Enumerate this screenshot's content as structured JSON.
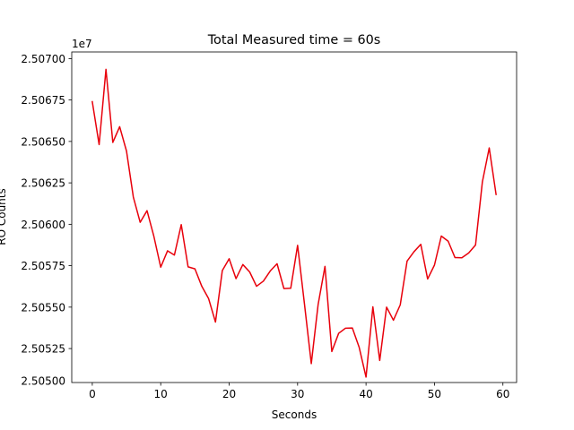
{
  "chart_data": {
    "type": "line",
    "title": "Total Measured time = 60s",
    "xlabel": "Seconds",
    "ylabel": "RO Counts",
    "y_offset_label": "1e7",
    "xlim": [
      -3,
      62
    ],
    "ylim": [
      2.505045,
      2.50704
    ],
    "x_ticks": [
      0,
      10,
      20,
      30,
      40,
      50,
      60
    ],
    "x_tick_labels": [
      "0",
      "10",
      "20",
      "30",
      "40",
      "50",
      "60"
    ],
    "y_ticks": [
      2.50525,
      2.5055,
      2.50575,
      2.506,
      2.50625,
      2.5065,
      2.50675,
      2.507
    ],
    "y_tick_labels": [
      "2.50525",
      "2.50550",
      "2.50575",
      "2.50600",
      "2.50625",
      "2.50650",
      "2.50675",
      "2.50700"
    ],
    "y_extra_ticks": [
      2.505
    ],
    "y_extra_tick_labels": [
      "2.50500"
    ],
    "grid": false,
    "series": [
      {
        "color": "#e8000b",
        "x": [
          0,
          1,
          2,
          3,
          4,
          5,
          6,
          7,
          8,
          9,
          10,
          11,
          12,
          13,
          14,
          15,
          16,
          17,
          18,
          19,
          20,
          21,
          22,
          23,
          24,
          25,
          26,
          27,
          28,
          29,
          30,
          31,
          32,
          33,
          34,
          35,
          36,
          37,
          38,
          39,
          40,
          41,
          42,
          43,
          44,
          45,
          46,
          47,
          48,
          49,
          50,
          51,
          52,
          53,
          54,
          55,
          56,
          57,
          58,
          59
        ],
        "y": [
          2.50674,
          2.506481,
          2.506935,
          2.506494,
          2.506589,
          2.506442,
          2.506164,
          2.506012,
          2.506082,
          2.505927,
          2.505741,
          2.50584,
          2.505814,
          2.505998,
          2.505743,
          2.505731,
          2.505626,
          2.505551,
          2.50541,
          2.505721,
          2.505792,
          2.505672,
          2.505757,
          2.505712,
          2.505626,
          2.505657,
          2.505718,
          2.505762,
          2.505612,
          2.505614,
          2.505873,
          2.50552,
          2.505159,
          2.505516,
          2.505746,
          2.505232,
          2.505342,
          2.505373,
          2.505374,
          2.505257,
          2.505078,
          2.505502,
          2.505178,
          2.5055,
          2.505421,
          2.505514,
          2.505778,
          2.505834,
          2.505879,
          2.50567,
          2.505754,
          2.505929,
          2.505898,
          2.505799,
          2.505798,
          2.505827,
          2.505875,
          2.506256,
          2.506461,
          2.50618
        ]
      }
    ]
  }
}
